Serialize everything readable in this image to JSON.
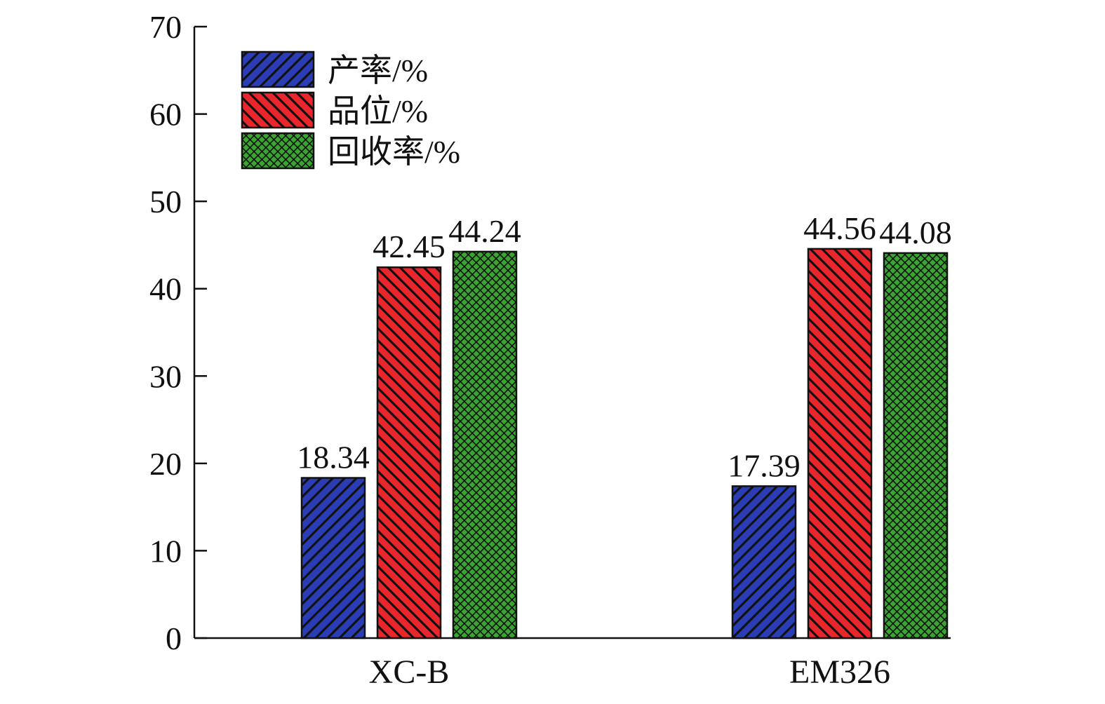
{
  "chart_data": {
    "type": "bar",
    "categories": [
      "XC-B",
      "EM326"
    ],
    "series": [
      {
        "name": "产率/%",
        "values": [
          18.34,
          17.39
        ],
        "color": "#2a3db5",
        "pattern": "diagonal-up"
      },
      {
        "name": "品位/%",
        "values": [
          42.45,
          44.56
        ],
        "color": "#e8262c",
        "pattern": "diagonal-down"
      },
      {
        "name": "回收率/%",
        "values": [
          44.24,
          44.08
        ],
        "color": "#3aa531",
        "pattern": "crosshatch"
      }
    ],
    "data_labels": [
      [
        "18.34",
        "17.39"
      ],
      [
        "42.45",
        "44.56"
      ],
      [
        "44.24",
        "44.08"
      ]
    ],
    "yticks": [
      "0",
      "10",
      "20",
      "30",
      "40",
      "50",
      "60",
      "70"
    ],
    "ylim": [
      0,
      70
    ],
    "legend_position": "top-left",
    "grid": false
  }
}
